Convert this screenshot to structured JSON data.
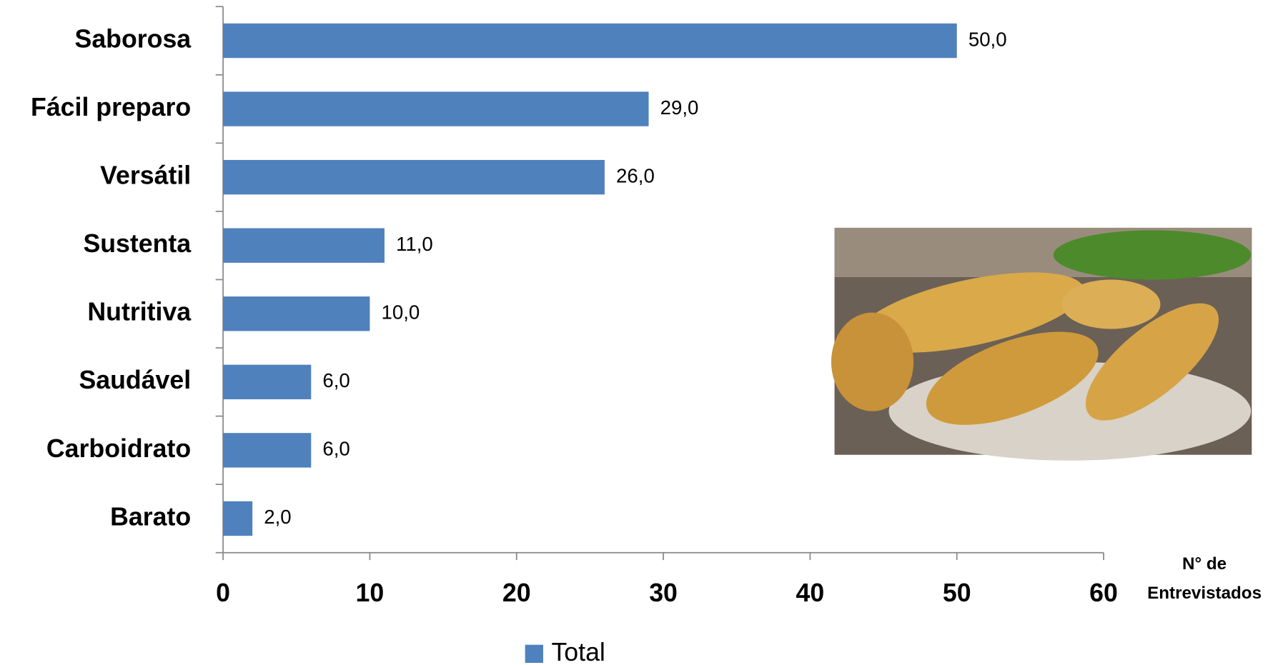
{
  "chart_data": {
    "type": "bar",
    "orientation": "horizontal",
    "categories": [
      "Saborosa",
      "Fácil preparo",
      "Versátil",
      "Sustenta",
      "Nutritiva",
      "Saudável",
      "Carboidrato",
      "Barato"
    ],
    "series": [
      {
        "name": "Total",
        "color": "#4f81bd",
        "values": [
          50,
          29,
          26,
          11,
          10,
          6,
          6,
          2
        ],
        "value_labels": [
          "50,0",
          "29,0",
          "26,0",
          "11,0",
          "10,0",
          "6,0",
          "6,0",
          "2,0"
        ]
      }
    ],
    "xlim": [
      0,
      60
    ],
    "xticks": [
      0,
      10,
      20,
      30,
      40,
      50,
      60
    ],
    "x_label": "N° de Entrevistados",
    "legend": "bottom"
  }
}
